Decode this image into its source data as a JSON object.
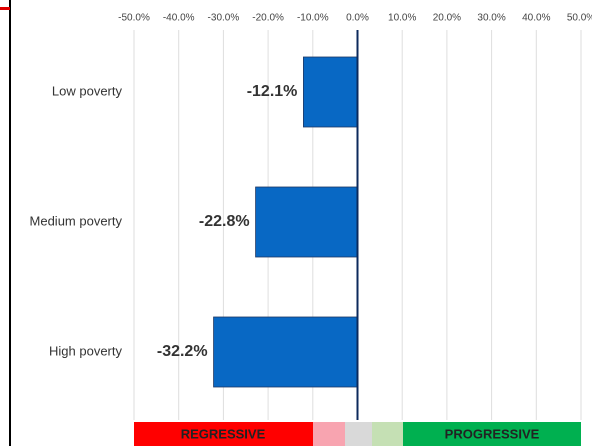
{
  "chart_data": {
    "type": "barh",
    "categories": [
      "Low poverty",
      "Medium poverty",
      "High poverty"
    ],
    "values": [
      -12.1,
      -22.8,
      -32.2
    ],
    "value_labels": [
      "-12.1%",
      "-22.8%",
      "-32.2%"
    ],
    "color": "#0868c4",
    "xlim": [
      -50,
      50
    ],
    "xticks": [
      {
        "value": -50,
        "label": "-50.0%"
      },
      {
        "value": -40,
        "label": "-40.0%"
      },
      {
        "value": -30,
        "label": "-30.0%"
      },
      {
        "value": -20,
        "label": "-20.0%"
      },
      {
        "value": -10,
        "label": "-10.0%"
      },
      {
        "value": 0,
        "label": "0.0%"
      },
      {
        "value": 10,
        "label": "10.0%"
      },
      {
        "value": 20,
        "label": "20.0%"
      },
      {
        "value": 30,
        "label": "30.0%"
      },
      {
        "value": 40,
        "label": "40.0%"
      },
      {
        "value": 50,
        "label": "50.0%"
      }
    ],
    "grid": true,
    "annotations": [
      "REGRESSIVE",
      "PROGRESSIVE"
    ]
  }
}
